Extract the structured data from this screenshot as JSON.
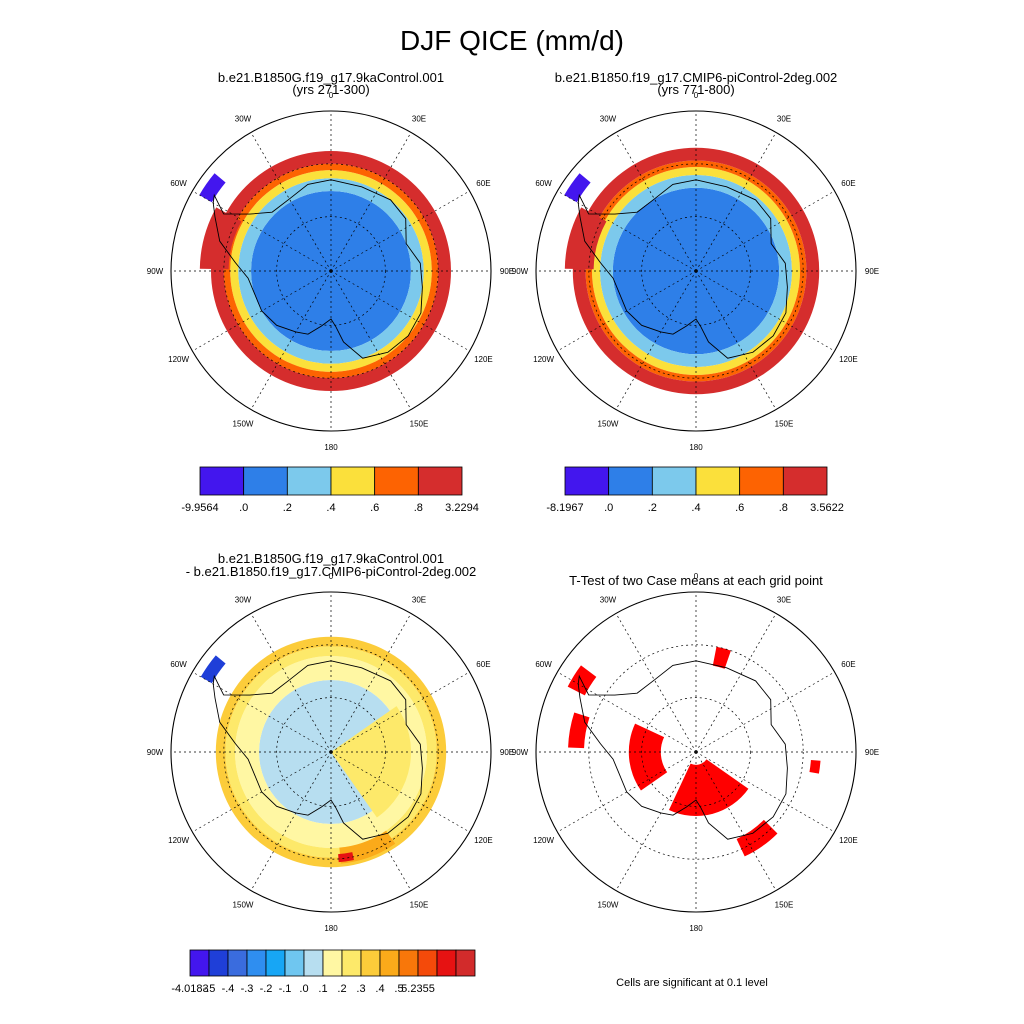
{
  "figure": {
    "title": "DJF QICE (mm/d)"
  },
  "colors": {
    "panel_bins": [
      "#4316ee",
      "#2e7fe8",
      "#7cc9ec",
      "#fbe03b",
      "#fd6302",
      "#d52d2d"
    ],
    "diff_bins": [
      "#4316ee",
      "#1f3fd8",
      "#3a6cde",
      "#2f8ef0",
      "#17a6f5",
      "#6fc6f0",
      "#b7def0",
      "#fff7a3",
      "#fde96a",
      "#fccc3a",
      "#fbaa1a",
      "#f8770a",
      "#f44a0a",
      "#e61212",
      "#d22b2b"
    ],
    "significant": "#ff0000"
  },
  "chart_data": [
    {
      "type": "heatmap",
      "projection": "south polar stereographic",
      "title_line1": "b.e21.B1850G.f19_g17.9kaControl.001",
      "title_line2": "(yrs 271-300)",
      "longitude_labels": [
        "0",
        "30E",
        "60E",
        "90E",
        "120E",
        "150E",
        "180",
        "150W",
        "120W",
        "90W",
        "60W",
        "30W"
      ],
      "colorbar": {
        "min_label": "-9.9564",
        "max_label": "3.2294",
        "tick_labels": [
          ".0",
          ".2",
          ".4",
          ".6",
          ".8"
        ],
        "bins": 6
      },
      "rings": [
        {
          "bin": 1,
          "rmin": 0.0,
          "rmax": 0.5
        },
        {
          "bin": 2,
          "rmin": 0.5,
          "rmax": 0.58
        },
        {
          "bin": 3,
          "rmin": 0.58,
          "rmax": 0.63
        },
        {
          "bin": 4,
          "rmin": 0.63,
          "rmax": 0.67
        },
        {
          "bin": 5,
          "rmin": 0.67,
          "rmax": 0.75
        }
      ],
      "patches": [
        {
          "bin": 0,
          "lon": -55,
          "r": 0.86,
          "dr": 0.09,
          "dlon": 10
        },
        {
          "bin": 5,
          "lon": -75,
          "r": 0.64,
          "dr": 0.18,
          "dlon": 28
        }
      ]
    },
    {
      "type": "heatmap",
      "projection": "south polar stereographic",
      "title_line1": "b.e21.B1850.f19_g17.CMIP6-piControl-2deg.002",
      "title_line2": "(yrs 771-800)",
      "longitude_labels": [
        "0",
        "30E",
        "60E",
        "90E",
        "120E",
        "150E",
        "180",
        "150W",
        "120W",
        "90W",
        "60W",
        "30W"
      ],
      "colorbar": {
        "min_label": "-8.1967",
        "max_label": "3.5622",
        "tick_labels": [
          ".0",
          ".2",
          ".4",
          ".6",
          ".8"
        ],
        "bins": 6
      },
      "rings": [
        {
          "bin": 1,
          "rmin": 0.0,
          "rmax": 0.52
        },
        {
          "bin": 2,
          "rmin": 0.52,
          "rmax": 0.6
        },
        {
          "bin": 3,
          "rmin": 0.6,
          "rmax": 0.65
        },
        {
          "bin": 4,
          "rmin": 0.65,
          "rmax": 0.69
        },
        {
          "bin": 5,
          "rmin": 0.69,
          "rmax": 0.77
        }
      ],
      "patches": [
        {
          "bin": 0,
          "lon": -55,
          "r": 0.86,
          "dr": 0.09,
          "dlon": 10
        },
        {
          "bin": 5,
          "lon": -75,
          "r": 0.64,
          "dr": 0.18,
          "dlon": 28
        }
      ]
    },
    {
      "type": "heatmap",
      "projection": "south polar stereographic",
      "title_line1": "b.e21.B1850G.f19_g17.9kaControl.001",
      "title_line2": "- b.e21.B1850.f19_g17.CMIP6-piControl-2deg.002",
      "longitude_labels": [
        "0",
        "30E",
        "60E",
        "90E",
        "120E",
        "150E",
        "180",
        "150W",
        "120W",
        "90W",
        "60W",
        "30W"
      ],
      "colorbar": {
        "min_label": "-4.0183",
        "max_label": "5.2355",
        "tick_labels": [
          "-.5",
          "-.4",
          "-.3",
          "-.2",
          "-.1",
          ".0",
          ".1",
          ".2",
          ".3",
          ".4",
          ".5"
        ],
        "bins": 15
      },
      "rings": [
        {
          "bin": 6,
          "rmin": 0.0,
          "rmax": 0.45
        },
        {
          "bin": 7,
          "rmin": 0.45,
          "rmax": 0.6
        },
        {
          "bin": 8,
          "rmin": 0.6,
          "rmax": 0.66
        },
        {
          "bin": 9,
          "rmin": 0.66,
          "rmax": 0.72
        }
      ],
      "patches": [
        {
          "bin": 8,
          "lon": 100,
          "r": 0.0,
          "dr": 0.5,
          "dlon": 90
        },
        {
          "bin": 10,
          "lon": 160,
          "r": 0.6,
          "dr": 0.1,
          "dlon": 30
        },
        {
          "bin": 13,
          "lon": 172,
          "r": 0.64,
          "dr": 0.05,
          "dlon": 8
        },
        {
          "bin": 1,
          "lon": -55,
          "r": 0.86,
          "dr": 0.08,
          "dlon": 10
        }
      ]
    },
    {
      "type": "heatmap",
      "projection": "south polar stereographic",
      "title_line1": "T-Test of two Case means at each grid point",
      "title_line2": "",
      "longitude_labels": [
        "0",
        "30E",
        "60E",
        "90E",
        "120E",
        "150E",
        "180",
        "150W",
        "120W",
        "90W",
        "60W",
        "30W"
      ],
      "note": "Cells are significant at 0.1 level",
      "significant_regions": [
        {
          "lon": -95,
          "r": 0.22,
          "dr": 0.2,
          "dlon": 60
        },
        {
          "lon": 165,
          "r": 0.08,
          "dr": 0.32,
          "dlon": 80
        },
        {
          "lon": 145,
          "r": 0.6,
          "dr": 0.12,
          "dlon": 20
        },
        {
          "lon": 15,
          "r": 0.55,
          "dr": 0.12,
          "dlon": 8
        },
        {
          "lon": 97,
          "r": 0.72,
          "dr": 0.06,
          "dlon": 6
        },
        {
          "lon": -58,
          "r": 0.78,
          "dr": 0.12,
          "dlon": 10
        },
        {
          "lon": -80,
          "r": 0.7,
          "dr": 0.1,
          "dlon": 16
        }
      ]
    }
  ]
}
